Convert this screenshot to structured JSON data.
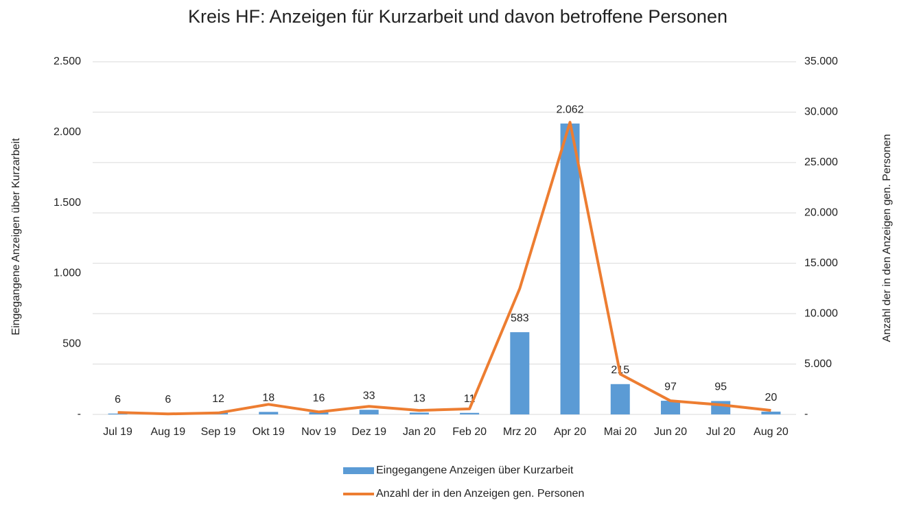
{
  "chart_data": {
    "type": "bar_line",
    "title": "Kreis HF: Anzeigen für Kurzarbeit und davon betroffene Personen",
    "y_label": "Eingegangene  Anzeigen über Kurzarbeit",
    "y2_label": "Anzahl der in den Anzeigen gen. Personen",
    "categories": [
      "Jul 19",
      "Aug 19",
      "Sep 19",
      "Okt 19",
      "Nov 19",
      "Dez 19",
      "Jan 20",
      "Feb 20",
      "Mrz 20",
      "Apr 20",
      "Mai 20",
      "Jun 20",
      "Jul 20",
      "Aug 20"
    ],
    "series": [
      {
        "name": "Eingegangene Anzeigen über Kurzarbeit",
        "type": "bar",
        "color": "#5b9bd5",
        "values": [
          6,
          6,
          12,
          18,
          16,
          33,
          13,
          11,
          583,
          2062,
          215,
          97,
          95,
          20
        ],
        "value_labels": [
          "6",
          "6",
          "12",
          "18",
          "16",
          "33",
          "13",
          "11",
          "583",
          "2.062",
          "215",
          "97",
          "95",
          "20"
        ]
      },
      {
        "name": "Anzahl der in den Anzeigen gen. Personen",
        "type": "line",
        "color": "#ed7d31",
        "axis": "y2",
        "values": [
          200,
          50,
          150,
          1000,
          250,
          800,
          400,
          550,
          12500,
          29000,
          4000,
          1350,
          950,
          400
        ]
      }
    ],
    "ylim": [
      0,
      2500
    ],
    "yticks": [
      {
        "value": 0,
        "label": "-"
      },
      500,
      {
        "value": 1000,
        "label": "1.000"
      },
      {
        "value": 1500,
        "label": "1.500"
      },
      {
        "value": 2000,
        "label": "2.000"
      },
      {
        "value": 2500,
        "label": "2.500"
      }
    ],
    "y2lim": [
      0,
      35000
    ],
    "y2ticks": [
      {
        "value": 0,
        "label": "-"
      },
      {
        "value": 5000,
        "label": "5.000"
      },
      {
        "value": 10000,
        "label": "10.000"
      },
      {
        "value": 15000,
        "label": "15.000"
      },
      {
        "value": 20000,
        "label": "20.000"
      },
      {
        "value": 25000,
        "label": "25.000"
      },
      {
        "value": 30000,
        "label": "30.000"
      },
      {
        "value": 35000,
        "label": "35.000"
      }
    ],
    "grid": "y2"
  }
}
